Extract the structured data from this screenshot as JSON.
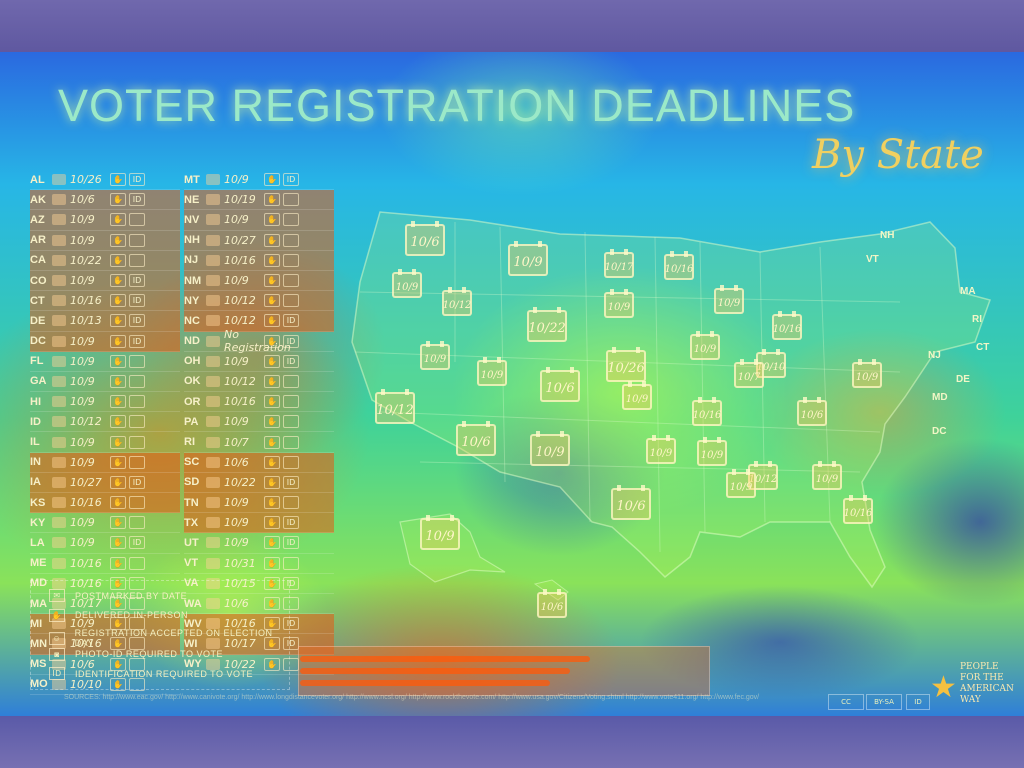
{
  "title": "VOTER REGISTRATION DEADLINES",
  "subtitle": "By State",
  "states_left": [
    {
      "abbr": "AL",
      "date": "10/26",
      "id": "ID"
    },
    {
      "abbr": "AK",
      "date": "10/6",
      "id": "ID"
    },
    {
      "abbr": "AZ",
      "date": "10/9",
      "id": ""
    },
    {
      "abbr": "AR",
      "date": "10/9",
      "id": ""
    },
    {
      "abbr": "CA",
      "date": "10/22",
      "id": ""
    },
    {
      "abbr": "CO",
      "date": "10/9",
      "id": "ID"
    },
    {
      "abbr": "CT",
      "date": "10/16",
      "id": "ID"
    },
    {
      "abbr": "DE",
      "date": "10/13",
      "id": "ID"
    },
    {
      "abbr": "DC",
      "date": "10/9",
      "id": "ID"
    },
    {
      "abbr": "FL",
      "date": "10/9",
      "id": ""
    },
    {
      "abbr": "GA",
      "date": "10/9",
      "id": ""
    },
    {
      "abbr": "HI",
      "date": "10/9",
      "id": ""
    },
    {
      "abbr": "ID",
      "date": "10/12",
      "id": ""
    },
    {
      "abbr": "IL",
      "date": "10/9",
      "id": ""
    },
    {
      "abbr": "IN",
      "date": "10/9",
      "id": ""
    },
    {
      "abbr": "IA",
      "date": "10/27",
      "id": "ID"
    },
    {
      "abbr": "KS",
      "date": "10/16",
      "id": ""
    },
    {
      "abbr": "KY",
      "date": "10/9",
      "id": ""
    },
    {
      "abbr": "LA",
      "date": "10/9",
      "id": "ID"
    },
    {
      "abbr": "ME",
      "date": "10/16",
      "id": ""
    },
    {
      "abbr": "MD",
      "date": "10/16",
      "id": ""
    },
    {
      "abbr": "MA",
      "date": "10/17",
      "id": ""
    },
    {
      "abbr": "MI",
      "date": "10/9",
      "id": ""
    },
    {
      "abbr": "MN",
      "date": "10/16",
      "id": ""
    },
    {
      "abbr": "MS",
      "date": "10/6",
      "id": ""
    },
    {
      "abbr": "MO",
      "date": "10/10",
      "id": ""
    }
  ],
  "states_right": [
    {
      "abbr": "MT",
      "date": "10/9",
      "id": "ID"
    },
    {
      "abbr": "NE",
      "date": "10/19",
      "id": ""
    },
    {
      "abbr": "NV",
      "date": "10/9",
      "id": ""
    },
    {
      "abbr": "NH",
      "date": "10/27",
      "id": ""
    },
    {
      "abbr": "NJ",
      "date": "10/16",
      "id": ""
    },
    {
      "abbr": "NM",
      "date": "10/9",
      "id": ""
    },
    {
      "abbr": "NY",
      "date": "10/12",
      "id": ""
    },
    {
      "abbr": "NC",
      "date": "10/12",
      "id": "ID"
    },
    {
      "abbr": "ND",
      "date": "No Registration",
      "id": "ID"
    },
    {
      "abbr": "OH",
      "date": "10/9",
      "id": "ID"
    },
    {
      "abbr": "OK",
      "date": "10/12",
      "id": ""
    },
    {
      "abbr": "OR",
      "date": "10/16",
      "id": ""
    },
    {
      "abbr": "PA",
      "date": "10/9",
      "id": ""
    },
    {
      "abbr": "RI",
      "date": "10/7",
      "id": ""
    },
    {
      "abbr": "SC",
      "date": "10/6",
      "id": ""
    },
    {
      "abbr": "SD",
      "date": "10/22",
      "id": "ID"
    },
    {
      "abbr": "TN",
      "date": "10/9",
      "id": ""
    },
    {
      "abbr": "TX",
      "date": "10/9",
      "id": "ID"
    },
    {
      "abbr": "UT",
      "date": "10/9",
      "id": "ID"
    },
    {
      "abbr": "VT",
      "date": "10/31",
      "id": ""
    },
    {
      "abbr": "VA",
      "date": "10/15",
      "id": "ID"
    },
    {
      "abbr": "WA",
      "date": "10/6",
      "id": ""
    },
    {
      "abbr": "WV",
      "date": "10/16",
      "id": "ID"
    },
    {
      "abbr": "WI",
      "date": "10/17",
      "id": "ID"
    },
    {
      "abbr": "WY",
      "date": "10/22",
      "id": ""
    }
  ],
  "legend": [
    {
      "glyph": "✉",
      "label": "POSTMARKED BY DATE"
    },
    {
      "glyph": "✋",
      "label": "DELIVERED IN-PERSON"
    },
    {
      "glyph": "☺",
      "label": "REGISTRATION ACCEPTED ON ELECTION DAY"
    },
    {
      "glyph": "◙",
      "label": "PHOTO-ID REQUIRED TO VOTE"
    },
    {
      "glyph": "ID",
      "label": "IDENTIFICATION REQUIRED TO VOTE"
    }
  ],
  "map_dates": [
    "10/6",
    "10/9",
    "10/9",
    "10/17",
    "10/16",
    "10/12",
    "10/9",
    "10/22",
    "10/9",
    "10/16",
    "10/9",
    "10/9",
    "10/26",
    "10/9",
    "10/6",
    "10/12",
    "10/9",
    "10/10",
    "10/9",
    "10/6",
    "10/6",
    "10/9",
    "10/9",
    "10/7",
    "10/16",
    "10/9",
    "10/12",
    "10/9",
    "10/9",
    "10/16",
    "10/6",
    "10/9",
    "10/6"
  ],
  "map_tags": [
    "NH",
    "VT",
    "MA",
    "RI",
    "CT",
    "NJ",
    "DE",
    "MD",
    "DC"
  ],
  "sources": "SOURCES: http://www.eac.gov/ http://www.canivote.org/ http://www.longdistancevoter.org/ http://www.ncsl.org/ http://www.rockthevote.com/ http://www.usa.gov/Citizens/Voting.shtml http://www.vote411.org/ http://www.fec.gov/",
  "cc_badges": [
    "CC",
    "BY-SA",
    "ID"
  ],
  "logo_text": [
    "PEOPLE",
    "FOR THE",
    "AMERICAN",
    "WAY"
  ]
}
